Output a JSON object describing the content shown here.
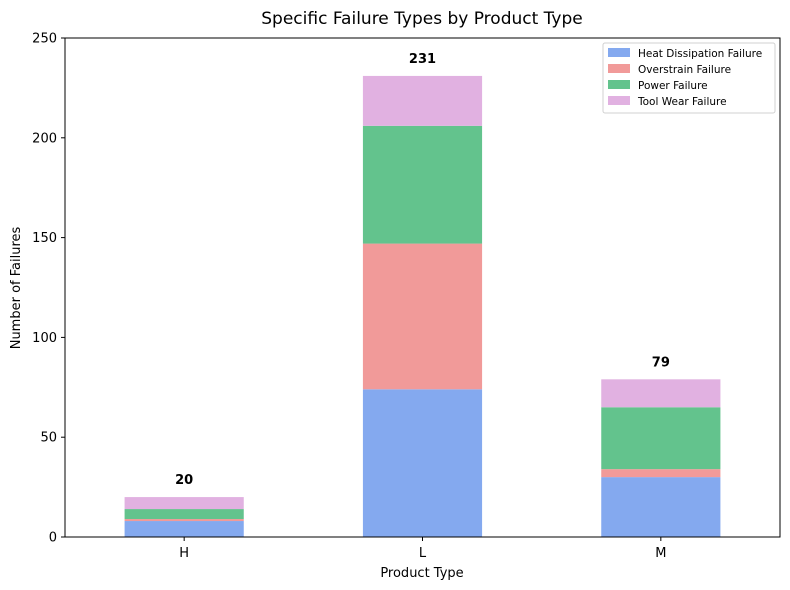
{
  "chart_data": {
    "type": "bar",
    "stacked": true,
    "title": "Specific Failure Types by Product Type",
    "xlabel": "Product Type",
    "ylabel": "Number of Failures",
    "categories": [
      "H",
      "L",
      "M"
    ],
    "ylim": [
      0,
      250
    ],
    "yticks": [
      0,
      50,
      100,
      150,
      200,
      250
    ],
    "series": [
      {
        "name": "Heat Dissipation Failure",
        "color": "#84a9ef",
        "values": [
          8,
          74,
          30
        ]
      },
      {
        "name": "Overstrain Failure",
        "color": "#f19a99",
        "values": [
          1,
          73,
          4
        ]
      },
      {
        "name": "Power Failure",
        "color": "#63c38d",
        "values": [
          5,
          59,
          31
        ]
      },
      {
        "name": "Tool Wear Failure",
        "color": "#e1b1e1",
        "values": [
          6,
          25,
          14
        ]
      }
    ],
    "totals": [
      "20",
      "231",
      "79"
    ],
    "legend_position": "top-right",
    "grid": false
  }
}
